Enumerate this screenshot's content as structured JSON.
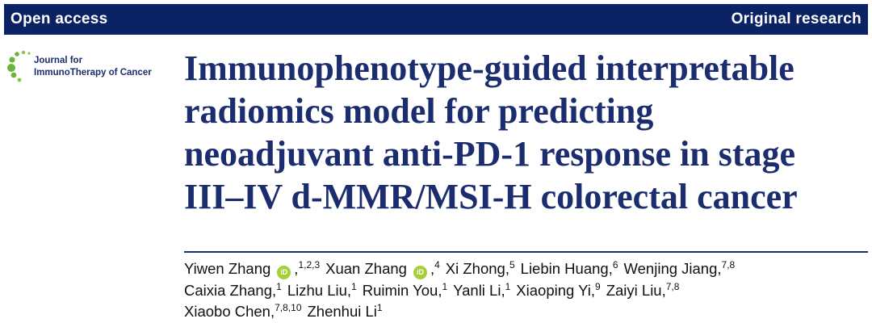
{
  "header": {
    "left": "Open access",
    "right": "Original research"
  },
  "journal": {
    "line1": "Journal for",
    "line2": "ImmunoTherapy of Cancer"
  },
  "title": {
    "lines": [
      "Immunophenotype-guided interpretable",
      "radiomics model for predicting",
      "neoadjuvant anti-PD-1 response in stage",
      "III–IV d-MMR/MSI-H colorectal cancer"
    ]
  },
  "authors": {
    "lines": [
      [
        {
          "name": "Yiwen Zhang",
          "orcid": true,
          "sep": ",",
          "affil": "1,2,3"
        },
        {
          "name": "Xuan Zhang",
          "orcid": true,
          "sep": ",",
          "affil": "4"
        },
        {
          "name": "Xi Zhong",
          "sep": ",",
          "affil": "5"
        },
        {
          "name": "Liebin Huang",
          "sep": ",",
          "affil": "6"
        },
        {
          "name": "Wenjing Jiang",
          "sep": ",",
          "affil": "7,8"
        }
      ],
      [
        {
          "name": "Caixia Zhang",
          "sep": ",",
          "affil": "1"
        },
        {
          "name": "Lizhu Liu",
          "sep": ",",
          "affil": "1"
        },
        {
          "name": "Ruimin You",
          "sep": ",",
          "affil": "1"
        },
        {
          "name": "Yanli Li",
          "sep": ",",
          "affil": "1"
        },
        {
          "name": "Xiaoping Yi",
          "sep": ",",
          "affil": "9"
        },
        {
          "name": "Zaiyi Liu",
          "sep": ",",
          "affil": "7,8"
        }
      ],
      [
        {
          "name": "Xiaobo Chen",
          "sep": ",",
          "affil": "7,8,10"
        },
        {
          "name": "Zhenhui Li",
          "affil": "1"
        }
      ]
    ]
  }
}
